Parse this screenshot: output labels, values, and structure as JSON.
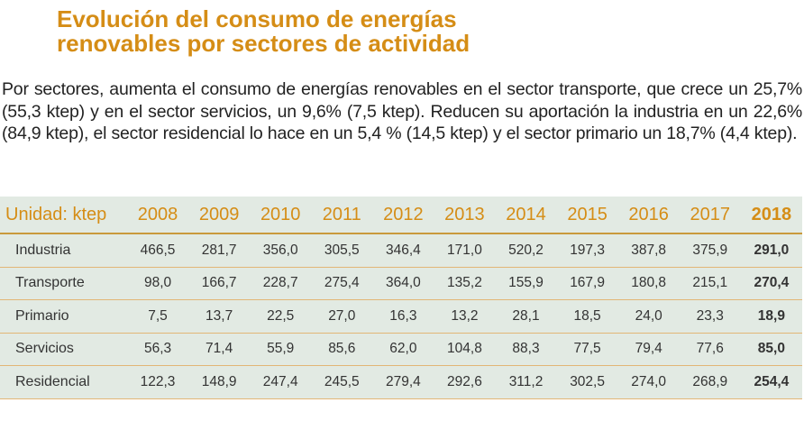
{
  "title": "Evolución del consumo de energías renovables por sectores de actividad",
  "title_lines": [
    "Evolución del consumo de energías",
    "renovables por sectores de actividad"
  ],
  "paragraph": "Por sectores, aumenta el consumo de energías renovables en el sector transporte, que crece un 25,7% (55,3 ktep) y en el sector servicios, un 9,6% (7,5 ktep). Reducen su aportación la industria en un 22,6% (84,9 ktep), el sector residencial lo hace en un 5,4 % (14,5 ktep) y el sector primario un 18,7% (4,4 ktep).",
  "colors": {
    "accent": "#d58d16",
    "table_bg": "#e2eae3",
    "row_border": "#e2b676"
  },
  "table": {
    "unit_label": "Unidad: ktep",
    "years": [
      "2008",
      "2009",
      "2010",
      "2011",
      "2012",
      "2013",
      "2014",
      "2015",
      "2016",
      "2017",
      "2018"
    ],
    "rows": [
      {
        "sector": "Industria",
        "values": [
          "466,5",
          "281,7",
          "356,0",
          "305,5",
          "346,4",
          "171,0",
          "520,2",
          "197,3",
          "387,8",
          "375,9",
          "291,0"
        ]
      },
      {
        "sector": "Transporte",
        "values": [
          "98,0",
          "166,7",
          "228,7",
          "275,4",
          "364,0",
          "135,2",
          "155,9",
          "167,9",
          "180,8",
          "215,1",
          "270,4"
        ]
      },
      {
        "sector": "Primario",
        "values": [
          "7,5",
          "13,7",
          "22,5",
          "27,0",
          "16,3",
          "13,2",
          "28,1",
          "18,5",
          "24,0",
          "23,3",
          "18,9"
        ]
      },
      {
        "sector": "Servicios",
        "values": [
          "56,3",
          "71,4",
          "55,9",
          "85,6",
          "62,0",
          "104,8",
          "88,3",
          "77,5",
          "79,4",
          "77,6",
          "85,0"
        ]
      },
      {
        "sector": "Residencial",
        "values": [
          "122,3",
          "148,9",
          "247,4",
          "245,5",
          "279,4",
          "292,6",
          "311,2",
          "302,5",
          "274,0",
          "268,9",
          "254,4"
        ]
      }
    ]
  }
}
